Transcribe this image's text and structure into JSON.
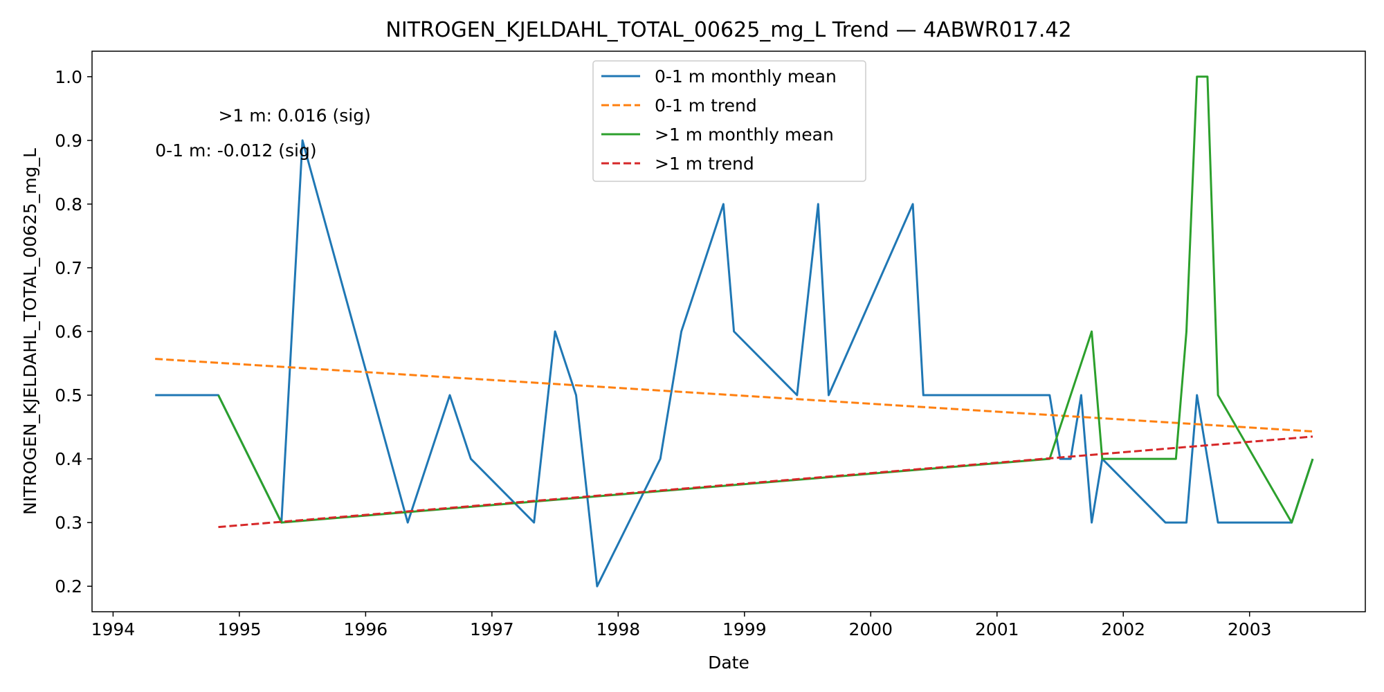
{
  "chart_data": {
    "type": "line",
    "title": "NITROGEN_KJELDAHL_TOTAL_00625_mg_L Trend — 4ABWR017.42",
    "xlabel": "Date",
    "ylabel": "NITROGEN_KJELDAHL_TOTAL_00625_mg_L",
    "xlim": [
      "1993-11",
      "2003-12"
    ],
    "ylim": [
      0.16,
      1.04
    ],
    "x_ticks": [
      "1994",
      "1995",
      "1996",
      "1997",
      "1998",
      "1999",
      "2000",
      "2001",
      "2002",
      "2003"
    ],
    "y_ticks": [
      "0.2",
      "0.3",
      "0.4",
      "0.5",
      "0.6",
      "0.7",
      "0.8",
      "0.9",
      "1.0"
    ],
    "grid": false,
    "legend_position": "top-center",
    "annotations": [
      {
        "text": ">1 m: 0.016 (sig)",
        "x": "1994-11",
        "y": 0.93
      },
      {
        "text": "0-1 m: -0.012 (sig)",
        "x": "1994-05",
        "y": 0.875
      }
    ],
    "series": [
      {
        "name": "0-1 m monthly mean",
        "color": "#1f77b4",
        "style": "solid",
        "points": [
          [
            "1994-05",
            0.5
          ],
          [
            "1994-11",
            0.5
          ],
          [
            "1995-05",
            0.3
          ],
          [
            "1995-07",
            0.9
          ],
          [
            "1996-05",
            0.3
          ],
          [
            "1996-09",
            0.5
          ],
          [
            "1996-11",
            0.4
          ],
          [
            "1997-05",
            0.3
          ],
          [
            "1997-07",
            0.6
          ],
          [
            "1997-09",
            0.5
          ],
          [
            "1997-11",
            0.2
          ],
          [
            "1998-05",
            0.4
          ],
          [
            "1998-07",
            0.6
          ],
          [
            "1998-11",
            0.8
          ],
          [
            "1998-12",
            0.6
          ],
          [
            "1999-06",
            0.5
          ],
          [
            "1999-08",
            0.8
          ],
          [
            "1999-09",
            0.5
          ],
          [
            "2000-05",
            0.8
          ],
          [
            "2000-06",
            0.5
          ],
          [
            "2001-06",
            0.5
          ],
          [
            "2001-07",
            0.4
          ],
          [
            "2001-08",
            0.4
          ],
          [
            "2001-09",
            0.5
          ],
          [
            "2001-10",
            0.3
          ],
          [
            "2001-11",
            0.4
          ],
          [
            "2002-05",
            0.3
          ],
          [
            "2002-07",
            0.3
          ],
          [
            "2002-08",
            0.5
          ],
          [
            "2002-10",
            0.3
          ],
          [
            "2003-05",
            0.3
          ],
          [
            "2003-07",
            0.4
          ]
        ]
      },
      {
        "name": "0-1 m trend",
        "color": "#ff7f0e",
        "style": "dashed",
        "points": [
          [
            "1994-05",
            0.557
          ],
          [
            "2003-07",
            0.443
          ]
        ]
      },
      {
        "name": ">1 m monthly mean",
        "color": "#2ca02c",
        "style": "solid",
        "points": [
          [
            "1994-11",
            0.5
          ],
          [
            "1995-05",
            0.3
          ],
          [
            "2001-06",
            0.4
          ],
          [
            "2001-10",
            0.6
          ],
          [
            "2001-11",
            0.4
          ],
          [
            "2002-06",
            0.4
          ],
          [
            "2002-07",
            0.6
          ],
          [
            "2002-08",
            1.0
          ],
          [
            "2002-09",
            1.0
          ],
          [
            "2002-10",
            0.5
          ],
          [
            "2003-05",
            0.3
          ],
          [
            "2003-07",
            0.4
          ]
        ]
      },
      {
        "name": ">1 m trend",
        "color": "#d62728",
        "style": "dashed",
        "points": [
          [
            "1994-11",
            0.293
          ],
          [
            "2003-07",
            0.435
          ]
        ]
      }
    ]
  }
}
